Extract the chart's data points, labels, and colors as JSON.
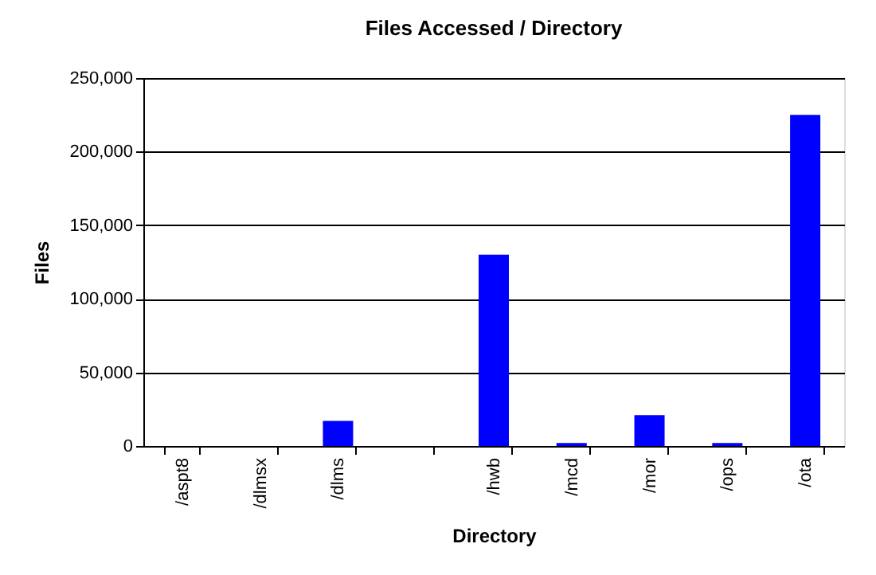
{
  "chart_data": {
    "type": "bar",
    "title": "Files Accessed / Directory",
    "xlabel": "Directory",
    "ylabel": "Files",
    "categories": [
      "/aspt8",
      "/dlmsx",
      "/dlms",
      null,
      "/hwb",
      "/mcd",
      "/mor",
      "/ops",
      "/ota"
    ],
    "values": [
      0,
      0,
      17000,
      0,
      130000,
      2000,
      21000,
      2000,
      225000
    ],
    "color": "#0000ff",
    "ylim": [
      0,
      250000
    ],
    "yticks": [
      0,
      {
        "value": 50000,
        "label": "50,000"
      },
      {
        "value": 100000,
        "label": "100,000"
      },
      {
        "value": 150000,
        "label": "150,000"
      },
      {
        "value": 200000,
        "label": "200,000"
      },
      {
        "value": 250000,
        "label": "250,000"
      }
    ],
    "grid": "y"
  }
}
